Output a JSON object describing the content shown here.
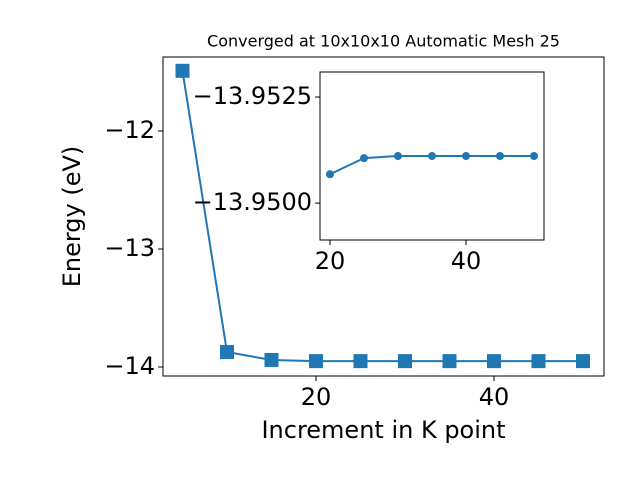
{
  "chart_data": [
    {
      "type": "line",
      "title": "Converged at 10x10x10 Automatic Mesh 25",
      "x_label": "Increment in K point",
      "y_label": "Energy (eV)",
      "marker": "square",
      "color": "#1f77b4",
      "x": [
        5,
        10,
        15,
        20,
        25,
        30,
        35,
        40,
        45,
        50
      ],
      "values": [
        -11.49,
        -13.873,
        -13.94,
        -13.95,
        -13.95,
        -13.95,
        -13.95,
        -13.95,
        -13.95,
        -13.95
      ],
      "xlim": [
        2.81,
        52.36
      ],
      "ylim": [
        -14.076,
        -11.373
      ],
      "xticks": [
        20,
        40
      ],
      "yticks": [
        {
          "value": -14,
          "label": "−14"
        },
        {
          "value": -13,
          "label": "−13"
        },
        {
          "value": -12,
          "label": "−12"
        }
      ]
    },
    {
      "type": "line",
      "marker": "circle",
      "color": "#1f77b4",
      "x": [
        20,
        25,
        30,
        35,
        40,
        45,
        50
      ],
      "values": [
        -13.95068,
        -13.95106,
        -13.95111,
        -13.95111,
        -13.95111,
        -13.95111,
        -13.95111
      ],
      "xlim": [
        18.53,
        51.47
      ],
      "ylim": [
        -13.94913,
        -13.95309
      ],
      "xticks": [
        20,
        40
      ],
      "yticks": [
        {
          "value": -13.95,
          "label": "−13.9500"
        },
        {
          "value": -13.9525,
          "label": "−13.9525"
        }
      ]
    }
  ]
}
